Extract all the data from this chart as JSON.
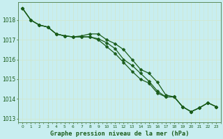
{
  "title": "Graphe pression niveau de la mer (hPa)",
  "background_color": "#c8eef0",
  "grid_color": "#aaddcc",
  "line_color": "#1a5c1a",
  "hours": [
    0,
    1,
    2,
    3,
    4,
    5,
    6,
    7,
    8,
    9,
    10,
    11,
    12,
    13,
    14,
    15,
    16,
    17,
    18,
    19,
    20,
    21,
    22,
    23
  ],
  "line1": [
    1018.6,
    1018.0,
    1017.75,
    1017.65,
    1017.3,
    1017.2,
    1017.15,
    1017.2,
    1017.3,
    1017.3,
    1017.0,
    1016.8,
    1016.5,
    1016.0,
    1015.5,
    1015.3,
    1014.85,
    1014.2,
    1014.1,
    1013.6,
    1013.35,
    1013.55,
    1013.8,
    1013.6
  ],
  "line2": [
    1018.6,
    1018.0,
    1017.75,
    1017.65,
    1017.3,
    1017.2,
    1017.15,
    1017.15,
    1017.15,
    1017.05,
    1016.85,
    1016.55,
    1016.0,
    1015.7,
    1015.3,
    1014.9,
    1014.4,
    1014.1,
    1014.1,
    1013.6,
    1013.35,
    1013.55,
    1013.8,
    1013.6
  ],
  "line3": [
    1018.6,
    1018.0,
    1017.75,
    1017.65,
    1017.3,
    1017.2,
    1017.15,
    1017.15,
    1017.15,
    1017.0,
    1016.65,
    1016.3,
    1015.85,
    1015.4,
    1015.0,
    1014.8,
    1014.3,
    1014.1,
    1014.1,
    1013.6,
    1013.35,
    1013.55,
    1013.8,
    1013.6
  ],
  "ylim": [
    1012.8,
    1018.9
  ],
  "yticks": [
    1013,
    1014,
    1015,
    1016,
    1017,
    1018
  ],
  "xlim": [
    -0.5,
    23.5
  ]
}
